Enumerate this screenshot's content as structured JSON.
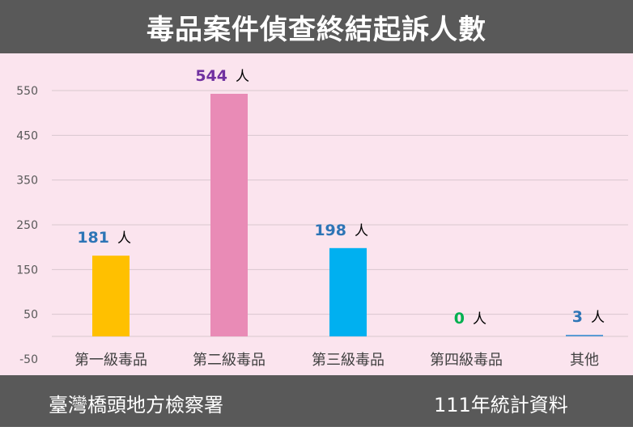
{
  "header": {
    "title": "毒品案件偵查終結起訴人數"
  },
  "footer": {
    "source": "臺灣橋頭地方檢察署",
    "note": "111年統計資料"
  },
  "chart_data": {
    "type": "bar",
    "title": "毒品案件偵查終結起訴人數",
    "categories": [
      "第一級毒品",
      "第二級毒品",
      "第三級毒品",
      "第四級毒品",
      "其他"
    ],
    "values": [
      181,
      544,
      198,
      0,
      3
    ],
    "unit": "人",
    "data_labels": [
      "181",
      "544",
      "198",
      "0",
      "3"
    ],
    "bar_colors": [
      "#ffc000",
      "#e98bb6",
      "#00b0f0",
      "#00b050",
      "#5b9bd5"
    ],
    "label_colors": [
      "#2e75b6",
      "#7030a0",
      "#2e75b6",
      "#00b050",
      "#2e75b6"
    ],
    "yticks": [
      -50,
      50,
      150,
      250,
      350,
      450,
      550
    ],
    "ylim": [
      -50,
      550
    ],
    "grid": true,
    "legend": "none",
    "xlabel": "",
    "ylabel": ""
  }
}
